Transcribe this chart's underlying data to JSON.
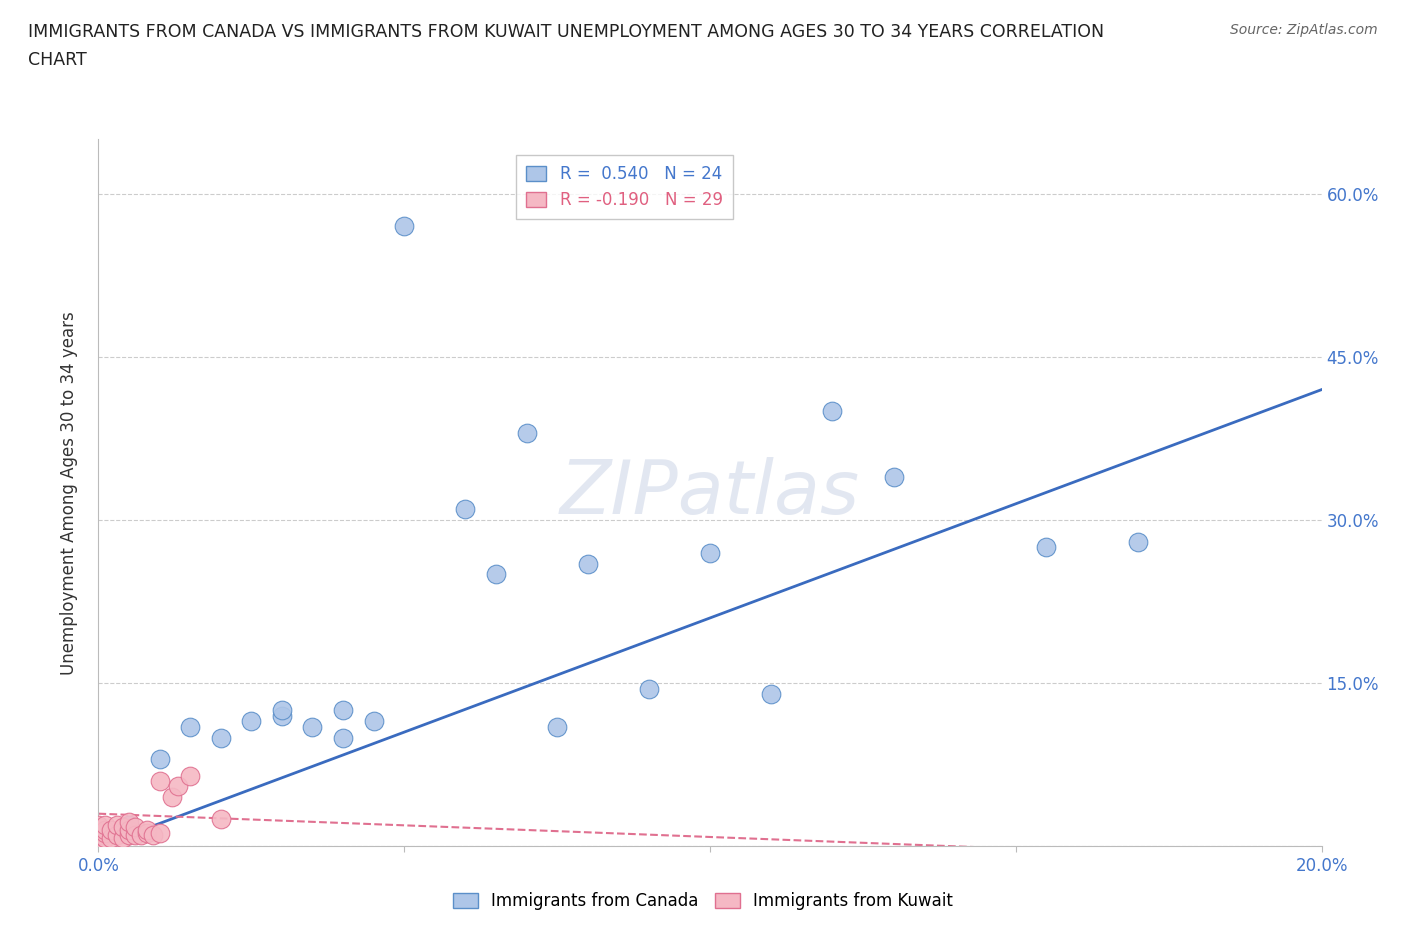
{
  "title_line1": "IMMIGRANTS FROM CANADA VS IMMIGRANTS FROM KUWAIT UNEMPLOYMENT AMONG AGES 30 TO 34 YEARS CORRELATION",
  "title_line2": "CHART",
  "source": "Source: ZipAtlas.com",
  "ylabel": "Unemployment Among Ages 30 to 34 years",
  "xlim": [
    0.0,
    0.2
  ],
  "ylim": [
    0.0,
    0.65
  ],
  "xtick_positions": [
    0.0,
    0.05,
    0.1,
    0.15,
    0.2
  ],
  "xtick_labels": [
    "0.0%",
    "",
    "",
    "",
    "20.0%"
  ],
  "ytick_positions": [
    0.0,
    0.15,
    0.3,
    0.45,
    0.6
  ],
  "ytick_labels_right": [
    "",
    "15.0%",
    "30.0%",
    "45.0%",
    "60.0%"
  ],
  "canada_color": "#aec6e8",
  "kuwait_color": "#f5b8c4",
  "canada_edge_color": "#5b8fc9",
  "kuwait_edge_color": "#e07090",
  "canada_line_color": "#3a6bbf",
  "kuwait_line_color": "#e07090",
  "canada_R": 0.54,
  "canada_N": 24,
  "kuwait_R": -0.19,
  "kuwait_N": 29,
  "watermark": "ZIPatlas",
  "canada_scatter_x": [
    0.005,
    0.01,
    0.015,
    0.02,
    0.025,
    0.03,
    0.03,
    0.035,
    0.04,
    0.04,
    0.045,
    0.05,
    0.06,
    0.065,
    0.07,
    0.075,
    0.08,
    0.09,
    0.1,
    0.11,
    0.12,
    0.13,
    0.155,
    0.17
  ],
  "canada_scatter_y": [
    0.02,
    0.08,
    0.11,
    0.1,
    0.115,
    0.12,
    0.125,
    0.11,
    0.1,
    0.125,
    0.115,
    0.57,
    0.31,
    0.25,
    0.38,
    0.11,
    0.26,
    0.145,
    0.27,
    0.14,
    0.4,
    0.34,
    0.275,
    0.28
  ],
  "kuwait_scatter_x": [
    0.0,
    0.0,
    0.0,
    0.0,
    0.001,
    0.001,
    0.001,
    0.001,
    0.002,
    0.002,
    0.003,
    0.003,
    0.004,
    0.004,
    0.005,
    0.005,
    0.005,
    0.006,
    0.006,
    0.007,
    0.008,
    0.008,
    0.009,
    0.01,
    0.01,
    0.012,
    0.013,
    0.015,
    0.02
  ],
  "kuwait_scatter_y": [
    0.005,
    0.01,
    0.015,
    0.02,
    0.008,
    0.012,
    0.015,
    0.02,
    0.008,
    0.015,
    0.01,
    0.02,
    0.008,
    0.018,
    0.01,
    0.015,
    0.022,
    0.01,
    0.018,
    0.01,
    0.012,
    0.015,
    0.01,
    0.012,
    0.06,
    0.045,
    0.055,
    0.065,
    0.025
  ]
}
